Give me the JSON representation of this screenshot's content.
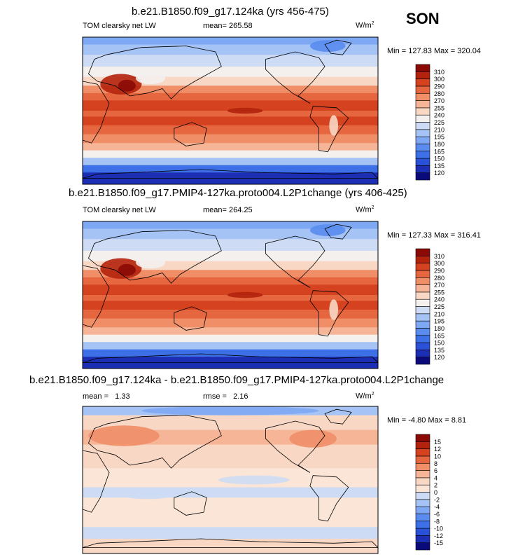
{
  "season": "SON",
  "panels": [
    {
      "title": "b.e21.B1850.f09_g17.124ka (yrs 456-475)",
      "variable": "TOM clearsky net LW",
      "mean_label": "mean=",
      "mean_value": "265.58",
      "units_base": "W/m",
      "units_exp": "2",
      "minmax": "Min = 127.83 Max = 320.04"
    },
    {
      "title": "b.e21.B1850.f09_g17.PMIP4-127ka.proto004.L2P1change (yrs 406-425)",
      "variable": "TOM clearsky net LW",
      "mean_label": "mean=",
      "mean_value": "264.25",
      "units_base": "W/m",
      "units_exp": "2",
      "minmax": "Min = 127.33 Max = 316.41"
    },
    {
      "title": "b.e21.B1850.f09_g17.124ka - b.e21.B1850.f09_g17.PMIP4-127ka.proto004.L2P1change",
      "mean_label": "mean =",
      "mean_value": "1.33",
      "rmse_label": "rmse =",
      "rmse_value": "2.16",
      "units_base": "W/m",
      "units_exp": "2",
      "minmax": "Min = -4.80 Max =  8.81"
    }
  ],
  "chart_data": [
    {
      "type": "heatmap",
      "title": "b.e21.B1850.f09_g17.124ka (yrs 456-475)",
      "colorbar_levels": [
        120,
        135,
        150,
        165,
        180,
        195,
        210,
        225,
        240,
        255,
        270,
        280,
        290,
        300,
        310
      ],
      "colors": [
        "#0a0a7a",
        "#1c2fb4",
        "#2a52d8",
        "#3d6fe6",
        "#5a8cef",
        "#7ea8f4",
        "#a6c3f5",
        "#cddcf4",
        "#f3f0ee",
        "#f8d7c4",
        "#f6b596",
        "#f08e68",
        "#e6663f",
        "#d4421f",
        "#b3220c",
        "#8b0a05"
      ],
      "min": 127.83,
      "max": 320.04,
      "mean": 265.58
    },
    {
      "type": "heatmap",
      "title": "b.e21.B1850.f09_g17.PMIP4-127ka.proto004.L2P1change (yrs 406-425)",
      "colorbar_levels": [
        120,
        135,
        150,
        165,
        180,
        195,
        210,
        225,
        240,
        255,
        270,
        280,
        290,
        300,
        310
      ],
      "colors": [
        "#0a0a7a",
        "#1c2fb4",
        "#2a52d8",
        "#3d6fe6",
        "#5a8cef",
        "#7ea8f4",
        "#a6c3f5",
        "#cddcf4",
        "#f3f0ee",
        "#f8d7c4",
        "#f6b596",
        "#f08e68",
        "#e6663f",
        "#d4421f",
        "#b3220c",
        "#8b0a05"
      ],
      "min": 127.33,
      "max": 316.41,
      "mean": 264.25
    },
    {
      "type": "heatmap",
      "title": "b.e21.B1850.f09_g17.124ka - b.e21.B1850.f09_g17.PMIP4-127ka.proto004.L2P1change",
      "colorbar_levels": [
        -15,
        -12,
        -10,
        -8,
        -6,
        -4,
        -2,
        0,
        2,
        4,
        6,
        8,
        10,
        12,
        15
      ],
      "colors": [
        "#0a0a7a",
        "#1c2fb4",
        "#2a52d8",
        "#3d6fe6",
        "#5a8cef",
        "#7ea8f4",
        "#a6c3f5",
        "#cddcf4",
        "#fbe5d6",
        "#f8d7c4",
        "#f6b596",
        "#f08e68",
        "#e6663f",
        "#d4421f",
        "#b3220c",
        "#8b0a05"
      ],
      "min": -4.8,
      "max": 8.81,
      "mean": 1.33,
      "rmse": 2.16
    }
  ]
}
